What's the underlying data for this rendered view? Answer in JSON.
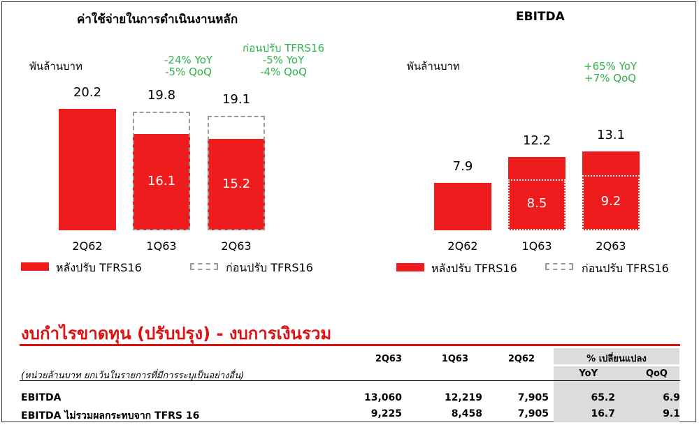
{
  "left_chart": {
    "title": "ค่าใช้จ่ายในการดำเนินงานหลัก",
    "unit": "พันล้านบาท",
    "growth_after": [
      "-24% YoY",
      "-5% QoQ"
    ],
    "growth_before_title": "ก่อนปรับ TFRS16",
    "growth_before": [
      "-5% YoY",
      "-4% QoQ"
    ],
    "legend_after": "หลังปรับ TFRS16",
    "legend_before": "ก่อนปรับ TFRS16"
  },
  "right_chart": {
    "title": "EBITDA",
    "unit": "พันล้านบาท",
    "growth": [
      "+65% YoY",
      "+7% QoQ"
    ],
    "legend_after": "หลังปรับ TFRS16",
    "legend_before": "ก่อนปรับ TFRS16"
  },
  "chart_data": [
    {
      "type": "bar",
      "title": "ค่าใช้จ่ายในการดำเนินงานหลัก",
      "ylabel": "พันล้านบาท",
      "categories": [
        "2Q62",
        "1Q63",
        "2Q63"
      ],
      "series": [
        {
          "name": "หลังปรับ TFRS16",
          "values": [
            20.2,
            16.1,
            15.2
          ]
        },
        {
          "name": "ก่อนปรับ TFRS16",
          "values": [
            20.2,
            19.8,
            19.1
          ]
        }
      ],
      "labels_top": [
        "20.2",
        "19.8",
        "19.1"
      ],
      "labels_inside": [
        "",
        "16.1",
        "15.2"
      ],
      "ylim": [
        0,
        22
      ]
    },
    {
      "type": "bar",
      "title": "EBITDA",
      "ylabel": "พันล้านบาท",
      "categories": [
        "2Q62",
        "1Q63",
        "2Q63"
      ],
      "series": [
        {
          "name": "หลังปรับ TFRS16",
          "values": [
            7.9,
            12.2,
            13.1
          ]
        },
        {
          "name": "ก่อนปรับ TFRS16",
          "values": [
            7.9,
            8.5,
            9.2
          ]
        }
      ],
      "labels_top": [
        "7.9",
        "12.2",
        "13.1"
      ],
      "labels_inside": [
        "",
        "8.5",
        "9.2"
      ],
      "ylim": [
        0,
        22
      ]
    }
  ],
  "table": {
    "title": "งบกำไรขาดทุน (ปรับปรุง) - งบการเงินรวม",
    "note": "(หน่วยล้านบาท ยกเว้นในรายการที่มีการระบุเป็นอย่างอื่น)",
    "columns": [
      "2Q63",
      "1Q63",
      "2Q62"
    ],
    "change_header": "% เปลี่ยนแปลง",
    "change_columns": [
      "YoY",
      "QoQ"
    ],
    "rows": [
      {
        "label": "EBITDA",
        "values": [
          "13,060",
          "12,219",
          "7,905"
        ],
        "yoy": "65.2",
        "qoq": "6.9"
      },
      {
        "label": "EBITDA ไม่รวมผลกระทบจาก TFRS 16",
        "values": [
          "9,225",
          "8,458",
          "7,905"
        ],
        "yoy": "16.7",
        "qoq": "9.1"
      }
    ]
  }
}
